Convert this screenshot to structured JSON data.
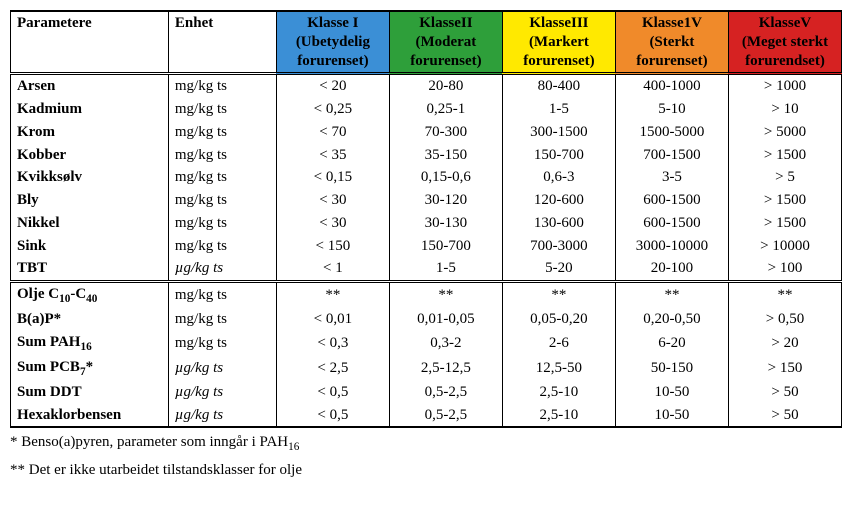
{
  "header": {
    "param_label": "Parametere",
    "unit_label": "Enhet",
    "classes": [
      {
        "title": "Klasse I",
        "desc": "(Ubetydelig forurenset)",
        "bg": "#3b8fd6"
      },
      {
        "title": "KlasseII",
        "desc": "(Moderat forurenset)",
        "bg": "#2e9f3a"
      },
      {
        "title": "KlasseIII",
        "desc": "(Markert forurenset)",
        "bg": "#ffe900"
      },
      {
        "title": "Klasse1V",
        "desc": "(Sterkt forurenset)",
        "bg": "#f08a2a"
      },
      {
        "title": "KlasseV",
        "desc": "(Meget sterkt forurendset)",
        "bg": "#d62222"
      }
    ]
  },
  "unit_mgkg": "mg/kg ts",
  "unit_ugkg": "µg/kg ts",
  "group1": [
    {
      "name": "Arsen",
      "unit_key": "unit_mgkg",
      "v": [
        "< 20",
        "20-80",
        "80-400",
        "400-1000",
        "> 1000"
      ]
    },
    {
      "name": "Kadmium",
      "unit_key": "unit_mgkg",
      "v": [
        "< 0,25",
        "0,25-1",
        "1-5",
        "5-10",
        "> 10"
      ]
    },
    {
      "name": "Krom",
      "unit_key": "unit_mgkg",
      "v": [
        "< 70",
        "70-300",
        "300-1500",
        "1500-5000",
        "> 5000"
      ]
    },
    {
      "name": "Kobber",
      "unit_key": "unit_mgkg",
      "v": [
        "< 35",
        "35-150",
        "150-700",
        "700-1500",
        "> 1500"
      ]
    },
    {
      "name": "Kvikksølv",
      "unit_key": "unit_mgkg",
      "v": [
        "< 0,15",
        "0,15-0,6",
        "0,6-3",
        "3-5",
        "> 5"
      ]
    },
    {
      "name": "Bly",
      "unit_key": "unit_mgkg",
      "v": [
        "< 30",
        "30-120",
        "120-600",
        "600-1500",
        "> 1500"
      ]
    },
    {
      "name": "Nikkel",
      "unit_key": "unit_mgkg",
      "v": [
        "< 30",
        "30-130",
        "130-600",
        "600-1500",
        "> 1500"
      ]
    },
    {
      "name": "Sink",
      "unit_key": "unit_mgkg",
      "v": [
        "< 150",
        "150-700",
        "700-3000",
        "3000-10000",
        "> 10000"
      ]
    },
    {
      "name": "TBT",
      "unit_key": "unit_ugkg",
      "italic_unit": true,
      "v": [
        "< 1",
        "1-5",
        "5-20",
        "20-100",
        "> 100"
      ]
    }
  ],
  "group2": [
    {
      "name_html": "Olje C<sub>10</sub>-C<sub>40</sub>",
      "unit_key": "unit_mgkg",
      "v": [
        "**",
        "**",
        "**",
        "**",
        "**"
      ]
    },
    {
      "name_html": "B(a)P*",
      "unit_key": "unit_mgkg",
      "v": [
        "< 0,01",
        "0,01-0,05",
        "0,05-0,20",
        "0,20-0,50",
        "> 0,50"
      ]
    },
    {
      "name_html": "Sum PAH<sub>16</sub>",
      "unit_key": "unit_mgkg",
      "v": [
        "< 0,3",
        "0,3-2",
        "2-6",
        "6-20",
        "> 20"
      ]
    },
    {
      "name_html": "Sum PCB<sub>7</sub>*",
      "unit_key": "unit_ugkg",
      "italic_unit": true,
      "v": [
        "< 2,5",
        "2,5-12,5",
        "12,5-50",
        "50-150",
        "> 150"
      ]
    },
    {
      "name_html": "Sum DDT",
      "unit_key": "unit_ugkg",
      "italic_unit": true,
      "v": [
        "< 0,5",
        "0,5-2,5",
        "2,5-10",
        "10-50",
        "> 50"
      ]
    },
    {
      "name_html": "Hexaklorbensen",
      "unit_key": "unit_ugkg",
      "italic_unit": true,
      "v": [
        "< 0,5",
        "0,5-2,5",
        "2,5-10",
        "10-50",
        "> 50"
      ]
    }
  ],
  "footnotes": {
    "f1_prefix": "*   Benso(a)pyren, parameter som inngår i PAH",
    "f1_sub": "16",
    "f2": "** Det er ikke utarbeidet tilstandsklasser for olje"
  },
  "col_widths": [
    "19%",
    "13%",
    "13.6%",
    "13.6%",
    "13.6%",
    "13.6%",
    "13.6%"
  ]
}
